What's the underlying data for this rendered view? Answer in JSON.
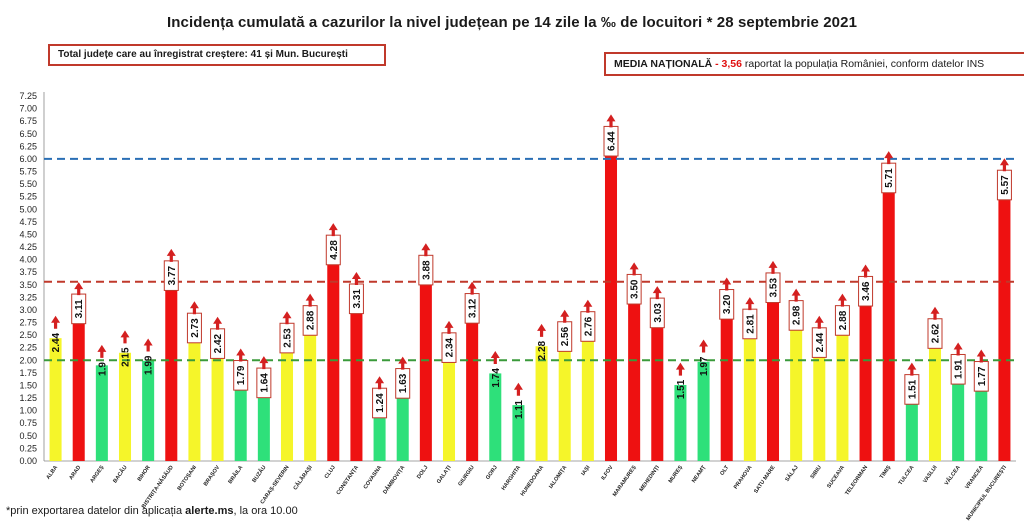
{
  "header": {
    "title": "Incidența cumulată a cazurilor la nivel județean pe 14 zile la ‰ de locuitori * 28 septembrie 2021"
  },
  "info_box": {
    "text": "Total județe care au înregistrat creștere: 41 și Mun. București"
  },
  "national_box": {
    "label": "MEDIA NAȚIONALĂ",
    "dash": " - ",
    "value": "3,56",
    "suffix": " raportat la populația României, conform datelor INS"
  },
  "footnote": {
    "prefix": "*prin exportarea datelor din aplicația ",
    "app": "alerte.ms",
    "suffix": ", la ora 10.00"
  },
  "colors": {
    "green": "#2ee07a",
    "yellow": "#f5f52a",
    "red": "#ee1111",
    "arrow": "#d42020",
    "line_blue": "#2a6fb5",
    "line_red": "#c0392b",
    "line_green": "#3a9a3a"
  },
  "chart_data": {
    "type": "bar",
    "ylim": [
      0,
      7.25
    ],
    "yticks": [
      "0.00",
      "0.25",
      "0.50",
      "0.75",
      "1.00",
      "1.25",
      "1.50",
      "1.75",
      "2.00",
      "2.25",
      "2.50",
      "2.75",
      "3.00",
      "3.25",
      "3.50",
      "3.75",
      "4.00",
      "4.25",
      "4.50",
      "4.75",
      "5.00",
      "5.25",
      "5.50",
      "5.75",
      "6.00",
      "6.25",
      "6.50",
      "6.75",
      "7.00",
      "7.25"
    ],
    "reference_lines": [
      {
        "value": 6.0,
        "color": "blue"
      },
      {
        "value": 3.56,
        "color": "red"
      },
      {
        "value": 2.0,
        "color": "green"
      }
    ],
    "categories": [
      "ALBA",
      "ARAD",
      "ARGEȘ",
      "BACĂU",
      "BIHOR",
      "BISTRIȚA-NĂSĂUD",
      "BOTOȘANI",
      "BRAȘOV",
      "BRĂILA",
      "BUZĂU",
      "CARAȘ-SEVERIN",
      "CĂLĂRAȘI",
      "CLUJ",
      "CONSTANȚA",
      "COVASNA",
      "DÂMBOVIȚA",
      "DOLJ",
      "GALAȚI",
      "GIURGIU",
      "GORJ",
      "HARGHITA",
      "HUNEDOARA",
      "IALOMIȚA",
      "IAȘI",
      "ILFOV",
      "MARAMUREȘ",
      "MEHEDINȚI",
      "MUREȘ",
      "NEAMȚ",
      "OLT",
      "PRAHOVA",
      "SATU MARE",
      "SĂLAJ",
      "SIBIU",
      "SUCEAVA",
      "TELEORMAN",
      "TIMIȘ",
      "TULCEA",
      "VASLUI",
      "VÂLCEA",
      "VRANCEA",
      "MUNICIPIUL BUCUREȘTI"
    ],
    "values": [
      2.44,
      3.11,
      1.9,
      2.15,
      1.99,
      3.77,
      2.73,
      2.42,
      1.79,
      1.64,
      2.53,
      2.88,
      4.28,
      3.31,
      1.24,
      1.63,
      3.88,
      2.34,
      3.12,
      1.74,
      1.11,
      2.28,
      2.56,
      2.76,
      6.44,
      3.5,
      3.03,
      1.51,
      1.97,
      3.2,
      2.81,
      3.53,
      2.98,
      2.44,
      2.88,
      3.46,
      5.71,
      1.51,
      2.62,
      1.91,
      1.77,
      5.57
    ],
    "labels": [
      "2.44",
      "3.11",
      "1.9",
      "2.15",
      "1.99",
      "3.77",
      "2.73",
      "2.42",
      "1.79",
      "1.64",
      "2.53",
      "2.88",
      "4.28",
      "3.31",
      "1.24",
      "1.63",
      "3.88",
      "2.34",
      "3.12",
      "1.74",
      "1.11",
      "2.28",
      "2.56",
      "2.76",
      "6.44",
      "3.50",
      "3.03",
      "1.51",
      "1.97",
      "3.20",
      "2.81",
      "3.53",
      "2.98",
      "2.44",
      "2.88",
      "3.46",
      "5.71",
      "1.51",
      "2.62",
      "1.91",
      "1.77",
      "5.57"
    ],
    "boxed_labels": [
      1,
      5,
      6,
      7,
      8,
      9,
      10,
      11,
      12,
      13,
      14,
      15,
      16,
      17,
      18,
      22,
      23,
      24,
      25,
      26,
      29,
      30,
      31,
      32,
      33,
      34,
      35,
      36,
      37,
      38,
      39,
      40,
      41
    ],
    "trend": "up"
  }
}
